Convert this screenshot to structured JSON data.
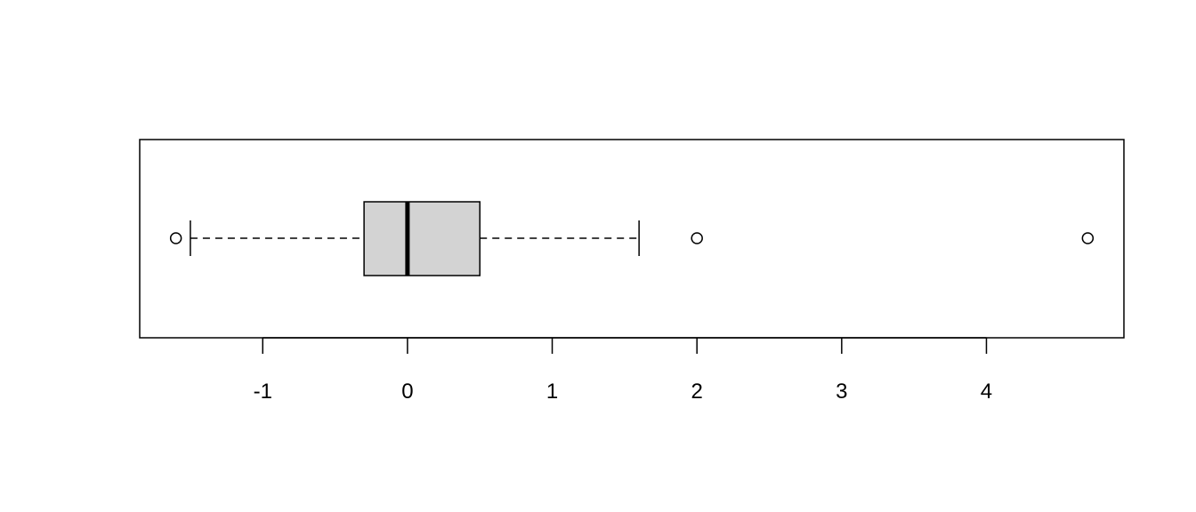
{
  "chart_data": {
    "type": "boxplot",
    "orientation": "horizontal",
    "title": "",
    "xlabel": "",
    "ylabel": "",
    "xlim": [
      -1.85,
      4.95
    ],
    "grid": false,
    "x_ticks": [
      -1,
      0,
      1,
      2,
      3,
      4
    ],
    "x_tick_labels": [
      "-1",
      "0",
      "1",
      "2",
      "3",
      "4"
    ],
    "box": {
      "whisker_low": -1.5,
      "q1": -0.3,
      "median": 0.0,
      "q3": 0.5,
      "whisker_high": 1.6
    },
    "outliers": [
      -1.6,
      2.0,
      4.7
    ],
    "colors": {
      "box_fill": "#d3d3d3",
      "stroke": "#000000"
    }
  }
}
